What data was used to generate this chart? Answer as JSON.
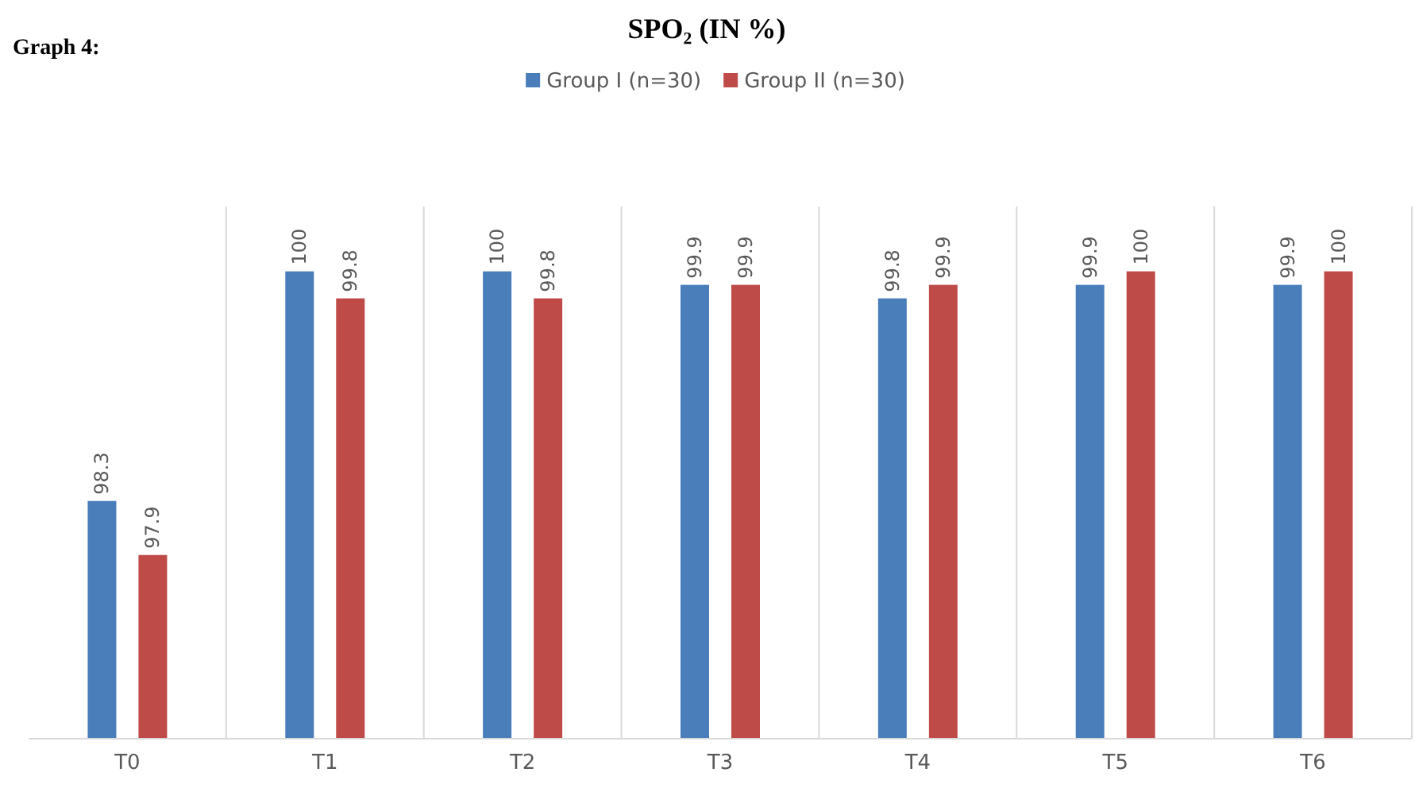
{
  "chart_data": {
    "type": "bar",
    "title": "SPO₂ (IN %)",
    "annotations": [
      "Graph 4:"
    ],
    "categories": [
      "T0",
      "T1",
      "T2",
      "T3",
      "T4",
      "T5",
      "T6"
    ],
    "series": [
      {
        "name": "Group I (n=30)",
        "color": "#4a7ebb",
        "values": [
          98.3,
          100,
          100,
          99.9,
          99.8,
          99.9,
          99.9
        ]
      },
      {
        "name": "Group II (n=30)",
        "color": "#be4b48",
        "values": [
          97.9,
          99.8,
          99.8,
          99.9,
          99.9,
          100,
          100
        ]
      }
    ],
    "ylim": [
      96.54,
      100.48
    ],
    "tick_labels": "x",
    "grid": "x",
    "legend": "top",
    "data_labels": true
  }
}
